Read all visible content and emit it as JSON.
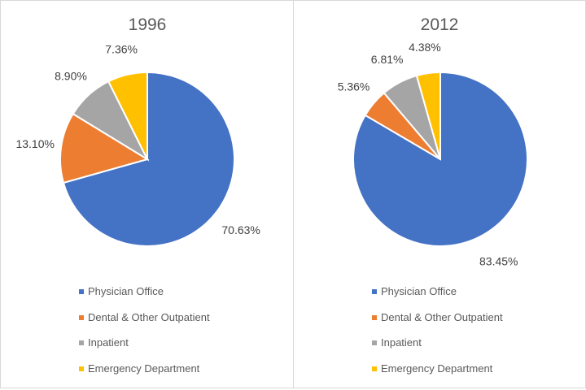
{
  "chart_data": [
    {
      "type": "pie",
      "title": "1996",
      "categories": [
        "Physician Office",
        "Dental & Other Outpatient",
        "Inpatient",
        "Emergency Department"
      ],
      "values": [
        70.63,
        13.1,
        8.9,
        7.36
      ],
      "labels": [
        "70.63%",
        "13.10%",
        "8.90%",
        "7.36%"
      ],
      "legend": "bottom"
    },
    {
      "type": "pie",
      "title": "2012",
      "categories": [
        "Physician Office",
        "Dental & Other Outpatient",
        "Inpatient",
        "Emergency Department"
      ],
      "values": [
        83.45,
        5.36,
        6.81,
        4.38
      ],
      "labels": [
        "83.45%",
        "5.36%",
        "6.81%",
        "4.38%"
      ],
      "legend": "bottom"
    }
  ],
  "colors": [
    "#4472c4",
    "#ed7d31",
    "#a5a5a5",
    "#ffc000"
  ]
}
